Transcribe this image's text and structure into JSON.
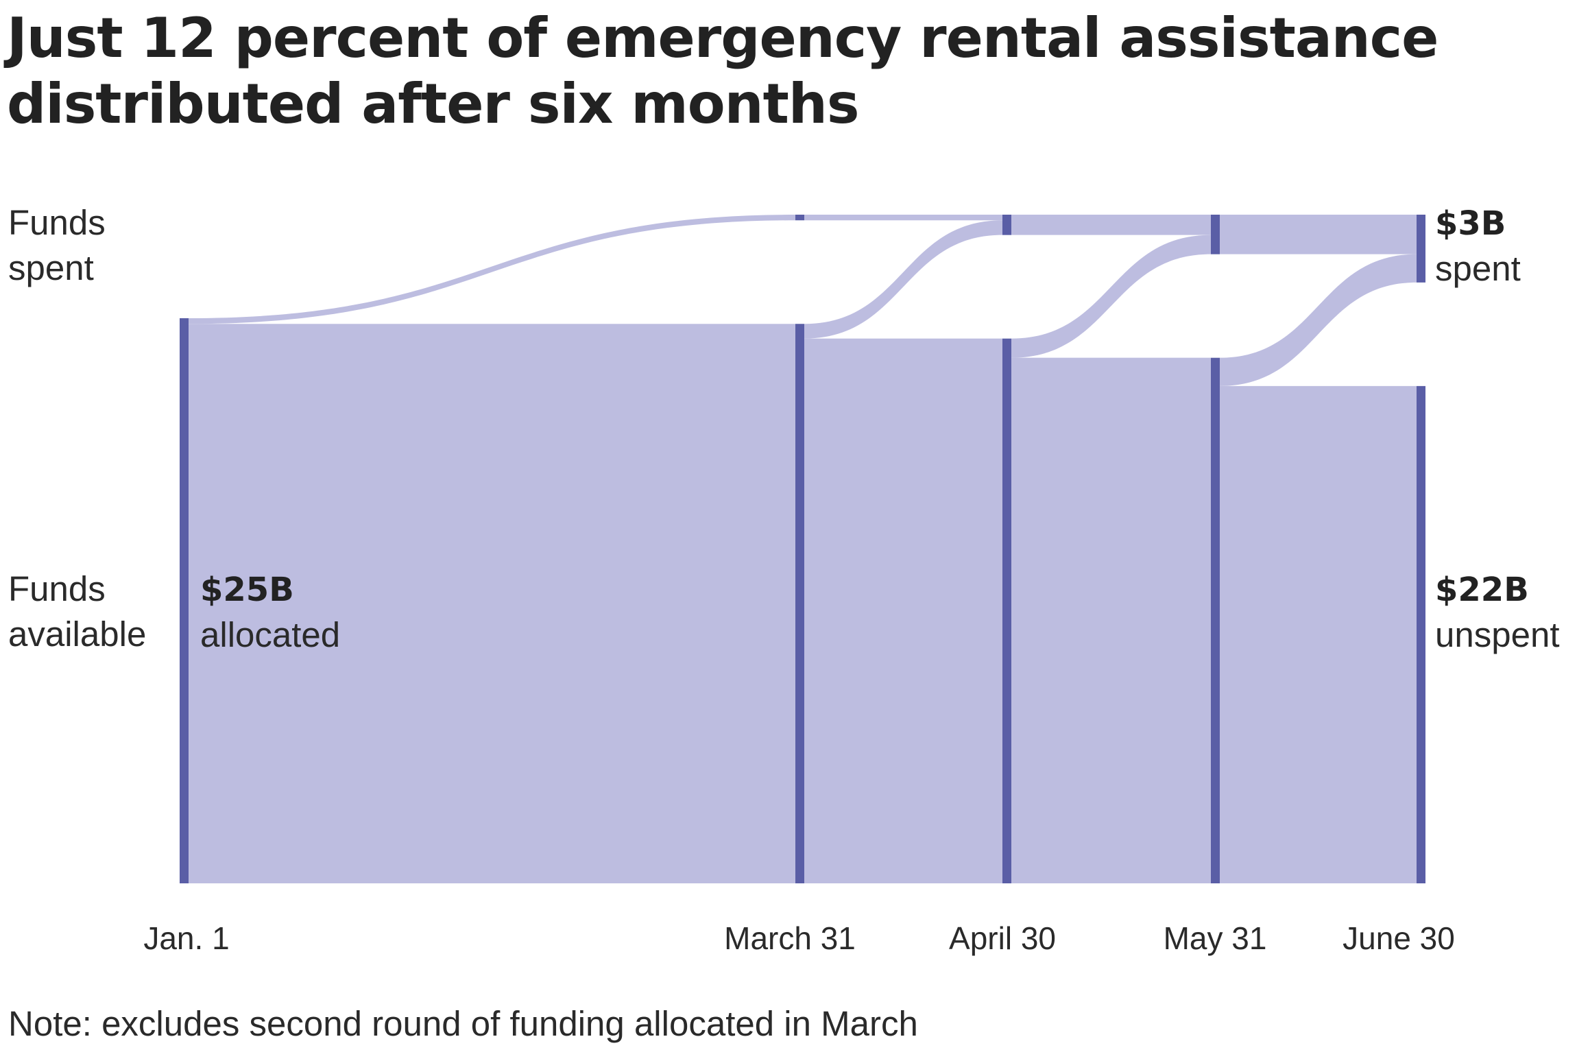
{
  "title": "Just 12 percent of emergency rental assistance distributed after six months",
  "row_labels": {
    "spent": [
      "Funds",
      "spent"
    ],
    "available": [
      "Funds",
      "available"
    ]
  },
  "start_label": {
    "value": "$25B",
    "text": "allocated"
  },
  "end_labels": {
    "spent": {
      "value": "$3B",
      "text": "spent"
    },
    "unspent": {
      "value": "$22B",
      "text": "unspent"
    }
  },
  "note": "Note: excludes second round of funding allocated in March",
  "colors": {
    "flow": "#bdbde0",
    "node": "#5a5ea6",
    "text": "#222222"
  },
  "chart_data": {
    "type": "sankey",
    "title": "Just 12 percent of emergency rental assistance distributed after six months",
    "units": "billions of dollars",
    "total_allocated": 25,
    "periods": [
      "Jan. 1",
      "March 31",
      "April 30",
      "May 31",
      "June 30"
    ],
    "cumulative_spent": [
      0,
      0.25,
      0.9,
      1.75,
      3.0
    ],
    "unspent": [
      25,
      24.75,
      24.1,
      23.25,
      22.0
    ],
    "final": {
      "spent": 3,
      "unspent": 22
    },
    "series": [
      {
        "name": "Funds spent",
        "values": [
          0,
          0.25,
          0.9,
          1.75,
          3.0
        ]
      },
      {
        "name": "Funds available",
        "values": [
          25,
          24.75,
          24.1,
          23.25,
          22.0
        ]
      }
    ]
  }
}
